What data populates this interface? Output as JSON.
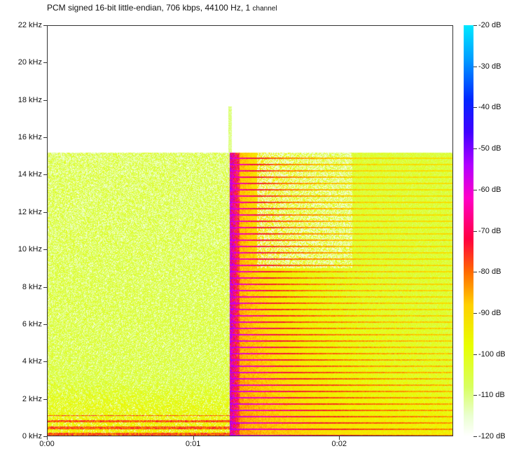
{
  "caption": {
    "format": "PCM signed 16-bit little-endian, 706 kbps, 44100 Hz, 1",
    "channel": "channel"
  },
  "spectrogram": {
    "freq_axis_labels": [
      "22 kHz",
      "20 kHz",
      "18 kHz",
      "16 kHz",
      "14 kHz",
      "12 kHz",
      "10 kHz",
      "8 kHz",
      "6 kHz",
      "4 kHz",
      "2 kHz",
      "0 kHz"
    ],
    "time_axis_labels": [
      "0:00",
      "0:01",
      "0:02"
    ],
    "db_scale_labels": [
      "-20 dB",
      "-30 dB",
      "-40 dB",
      "-50 dB",
      "-60 dB",
      "-70 dB",
      "-80 dB",
      "-90 dB",
      "-100 dB",
      "-110 dB",
      "-120 dB"
    ],
    "freq_max_khz": 22,
    "time_max_s": 0.0278,
    "onset_time_s": 0.0125,
    "noise_cutoff_khz": 15.2
  }
}
